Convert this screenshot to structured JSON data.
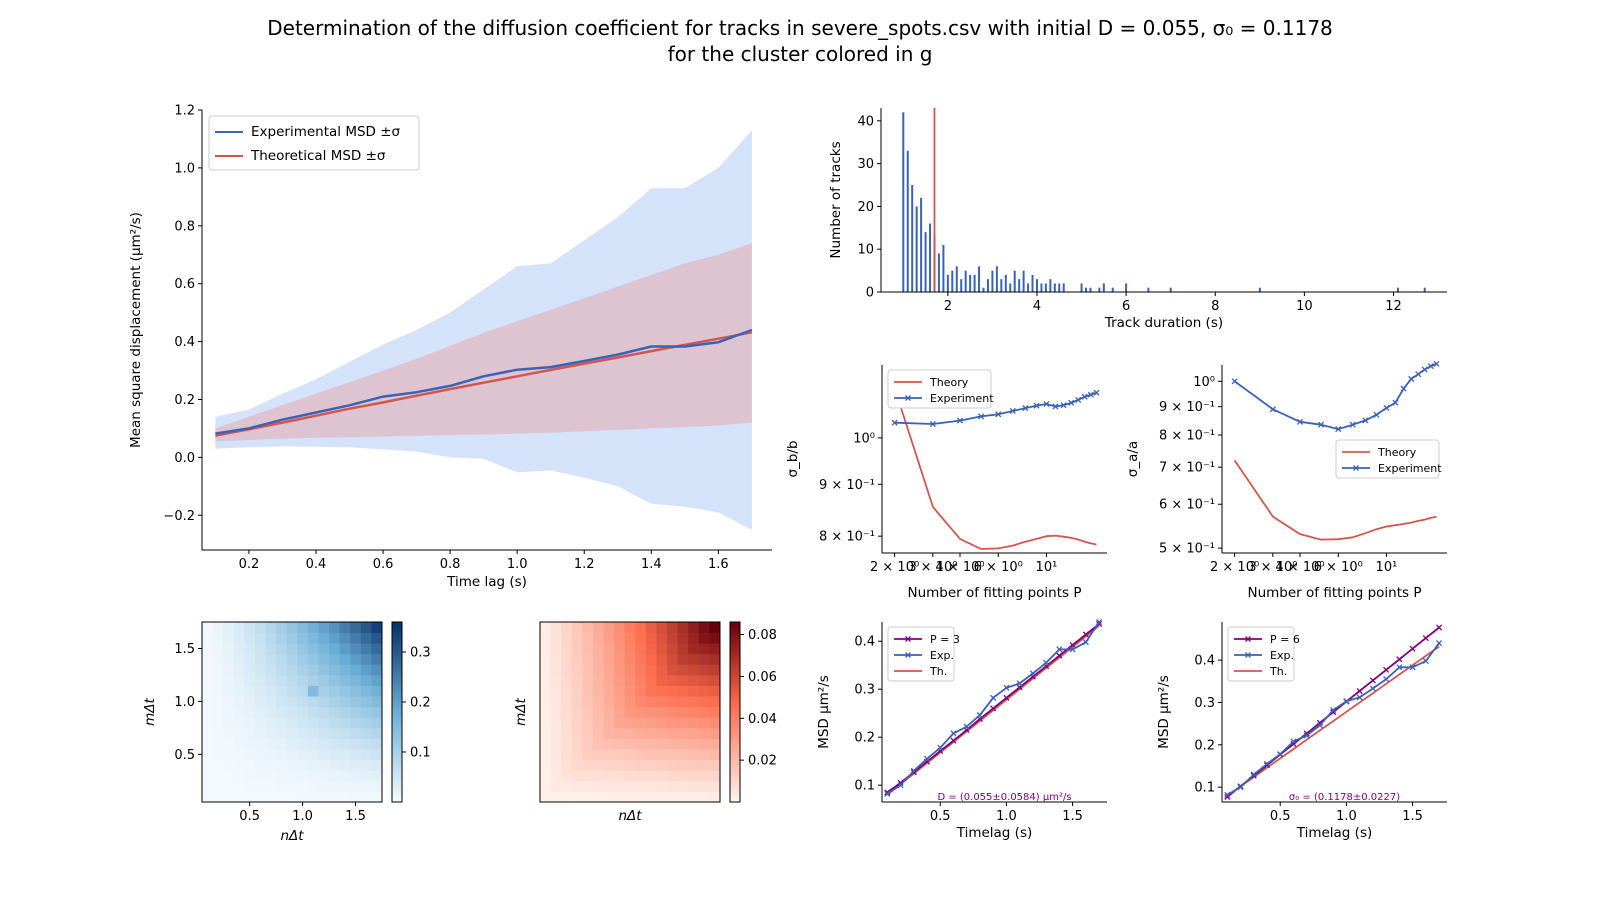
{
  "figure": {
    "title_line1": "Determination of the diffusion coefficient for tracks in severe_spots.csv with initial D = 0.055, σ₀ = 0.1178",
    "title_line2": "for the cluster colored in g"
  },
  "colors": {
    "blue": "#3a62b5",
    "red": "#d1574c",
    "purple": "#800080",
    "blue_band": "#a9c6f5",
    "red_band": "#e8a3a8"
  },
  "chart_data": [
    {
      "id": "msd_main",
      "type": "line",
      "xlabel": "Time lag (s)",
      "ylabel": "Mean square displacement (μm²/s)",
      "xlim": [
        0.06,
        1.76
      ],
      "ylim": [
        -0.32,
        1.2
      ],
      "xticks": [
        "0.2",
        "0.4",
        "0.6",
        "0.8",
        "1.0",
        "1.2",
        "1.4",
        "1.6"
      ],
      "yticks": [
        "−0.2",
        "0.0",
        "0.2",
        "0.4",
        "0.6",
        "0.8",
        "1.0",
        "1.2"
      ],
      "legend": "top-left",
      "x": [
        0.1,
        0.2,
        0.3,
        0.4,
        0.5,
        0.6,
        0.7,
        0.8,
        0.9,
        1.0,
        1.1,
        1.2,
        1.3,
        1.4,
        1.5,
        1.6,
        1.7
      ],
      "series": [
        {
          "name": "Experimental MSD ±σ",
          "values": [
            0.082,
            0.1,
            0.13,
            0.155,
            0.18,
            0.21,
            0.225,
            0.247,
            0.28,
            0.303,
            0.312,
            0.333,
            0.355,
            0.383,
            0.383,
            0.398,
            0.44
          ],
          "lower": [
            0.03,
            0.035,
            0.038,
            0.037,
            0.035,
            0.028,
            0.02,
            0.0,
            -0.005,
            -0.052,
            -0.045,
            -0.07,
            -0.1,
            -0.16,
            -0.17,
            -0.19,
            -0.25
          ],
          "upper": [
            0.14,
            0.165,
            0.22,
            0.27,
            0.33,
            0.39,
            0.44,
            0.5,
            0.58,
            0.66,
            0.67,
            0.75,
            0.83,
            0.93,
            0.93,
            1.0,
            1.13
          ]
        },
        {
          "name": "Theoretical MSD ±σ",
          "values": [
            0.075,
            0.097,
            0.12,
            0.144,
            0.168,
            0.19,
            0.213,
            0.236,
            0.258,
            0.28,
            0.302,
            0.324,
            0.345,
            0.367,
            0.389,
            0.41,
            0.432
          ],
          "lower": [
            0.055,
            0.06,
            0.065,
            0.068,
            0.07,
            0.072,
            0.075,
            0.077,
            0.079,
            0.082,
            0.085,
            0.09,
            0.095,
            0.1,
            0.105,
            0.11,
            0.12
          ],
          "upper": [
            0.1,
            0.14,
            0.18,
            0.22,
            0.26,
            0.3,
            0.34,
            0.385,
            0.43,
            0.47,
            0.51,
            0.55,
            0.59,
            0.63,
            0.67,
            0.7,
            0.74
          ]
        }
      ]
    },
    {
      "id": "duration_hist",
      "type": "bar",
      "xlabel": "Track duration (s)",
      "ylabel": "Number of tracks",
      "xlim": [
        0.5,
        13.2
      ],
      "ylim": [
        0,
        43
      ],
      "xticks": [
        "2",
        "4",
        "6",
        "8",
        "10",
        "12"
      ],
      "yticks": [
        "0",
        "10",
        "20",
        "30",
        "40"
      ],
      "marker_line_x": 1.7,
      "x": [
        1.0,
        1.1,
        1.2,
        1.3,
        1.4,
        1.5,
        1.6,
        1.7,
        1.8,
        1.9,
        2.0,
        2.1,
        2.2,
        2.3,
        2.4,
        2.5,
        2.6,
        2.7,
        2.8,
        2.9,
        3.0,
        3.1,
        3.2,
        3.3,
        3.4,
        3.5,
        3.6,
        3.7,
        3.8,
        3.9,
        4.0,
        4.1,
        4.2,
        4.3,
        4.4,
        4.5,
        4.6,
        5.0,
        5.1,
        5.2,
        5.4,
        5.5,
        5.7,
        6.0,
        6.5,
        7.0,
        9.0,
        12.1,
        12.7
      ],
      "values": [
        42,
        33,
        25,
        20,
        22,
        14,
        16,
        13,
        9,
        11,
        4,
        5,
        6,
        3,
        5,
        4,
        4,
        6,
        1,
        3,
        5,
        6,
        3,
        4,
        2,
        5,
        3,
        5,
        2,
        4,
        3,
        2,
        2,
        3,
        2,
        2,
        2,
        2,
        1,
        1,
        1,
        2,
        1,
        2,
        1,
        1,
        1,
        1,
        1
      ]
    },
    {
      "id": "sigma_b",
      "type": "line",
      "scale": "log-log",
      "xlabel": "Number of fitting points P",
      "ylabel": "σ_b/b",
      "xlim": [
        1.75,
        19.0
      ],
      "ylim": [
        0.77,
        1.18
      ],
      "xticks": [
        "2 × 10⁰",
        "3 × 10⁰",
        "4 × 10⁰",
        "6 × 10⁰",
        "10¹"
      ],
      "yticks": [
        "8 × 10⁻¹",
        "9 × 10⁻¹",
        "10⁰"
      ],
      "legend": "top-left",
      "x": [
        2,
        3,
        4,
        5,
        6,
        7,
        8,
        9,
        10,
        11,
        12,
        13,
        14,
        15,
        16,
        17
      ],
      "series": [
        {
          "name": "Theory",
          "values": [
            1.12,
            0.855,
            0.795,
            0.777,
            0.778,
            0.783,
            0.79,
            0.795,
            0.8,
            0.801,
            0.799,
            0.797,
            0.794,
            0.79,
            0.787,
            0.785
          ]
        },
        {
          "name": "Experiment",
          "values": [
            1.035,
            1.032,
            1.04,
            1.05,
            1.055,
            1.063,
            1.07,
            1.076,
            1.08,
            1.074,
            1.077,
            1.083,
            1.09,
            1.098,
            1.103,
            1.108
          ]
        }
      ]
    },
    {
      "id": "sigma_a",
      "type": "line",
      "scale": "log-log",
      "xlabel": "Number of fitting points P",
      "ylabel": "σ_a/a",
      "xlim": [
        1.75,
        19.0
      ],
      "ylim": [
        0.49,
        1.07
      ],
      "xticks": [
        "2 × 10⁰",
        "3 × 10⁰",
        "4 × 10⁰",
        "6 × 10⁰",
        "10¹"
      ],
      "yticks": [
        "5 × 10⁻¹",
        "6 × 10⁻¹",
        "7 × 10⁻¹",
        "8 × 10⁻¹",
        "9 × 10⁻¹",
        "10⁰"
      ],
      "legend": "center-right",
      "x": [
        2,
        3,
        4,
        5,
        6,
        7,
        8,
        9,
        10,
        11,
        12,
        13,
        14,
        15,
        16,
        17
      ],
      "series": [
        {
          "name": "Theory",
          "values": [
            0.72,
            0.57,
            0.53,
            0.518,
            0.519,
            0.523,
            0.532,
            0.541,
            0.547,
            0.55,
            0.553,
            0.556,
            0.56,
            0.563,
            0.567,
            0.57
          ]
        },
        {
          "name": "Experiment",
          "values": [
            1.0,
            0.89,
            0.845,
            0.835,
            0.82,
            0.835,
            0.85,
            0.87,
            0.895,
            0.915,
            0.97,
            1.01,
            1.03,
            1.05,
            1.065,
            1.075
          ]
        }
      ]
    },
    {
      "id": "fit_p3",
      "type": "line",
      "xlabel": "Timelag (s)",
      "ylabel": "MSD μm²/s",
      "xlim": [
        0.06,
        1.76
      ],
      "ylim": [
        0.065,
        0.44
      ],
      "xticks": [
        "0.5",
        "1.0",
        "1.5"
      ],
      "yticks": [
        "0.1",
        "0.2",
        "0.3",
        "0.4"
      ],
      "legend": "top-left",
      "annotation": "D = (0.055±0.0584) μm²/s",
      "x": [
        0.1,
        0.2,
        0.3,
        0.4,
        0.5,
        0.6,
        0.7,
        0.8,
        0.9,
        1.0,
        1.1,
        1.2,
        1.3,
        1.4,
        1.5,
        1.6,
        1.7
      ],
      "series": [
        {
          "name": "P = 3",
          "values": [
            0.085,
            0.105,
            0.127,
            0.149,
            0.171,
            0.193,
            0.215,
            0.238,
            0.26,
            0.282,
            0.304,
            0.326,
            0.348,
            0.37,
            0.392,
            0.414,
            0.436
          ]
        },
        {
          "name": "Exp.",
          "values": [
            0.082,
            0.1,
            0.13,
            0.155,
            0.178,
            0.208,
            0.222,
            0.246,
            0.282,
            0.303,
            0.312,
            0.333,
            0.355,
            0.383,
            0.383,
            0.398,
            0.44
          ]
        },
        {
          "name": "Th.",
          "values": [
            0.08,
            0.102,
            0.124,
            0.146,
            0.168,
            0.19,
            0.212,
            0.234,
            0.256,
            0.278,
            0.3,
            0.322,
            0.344,
            0.366,
            0.388,
            0.41,
            0.432
          ]
        }
      ]
    },
    {
      "id": "fit_p6",
      "type": "line",
      "xlabel": "Timelag (s)",
      "ylabel": "MSD μm²/s",
      "xlim": [
        0.06,
        1.76
      ],
      "ylim": [
        0.065,
        0.49
      ],
      "xticks": [
        "0.5",
        "1.0",
        "1.5"
      ],
      "yticks": [
        "0.1",
        "0.2",
        "0.3",
        "0.4"
      ],
      "legend": "top-left",
      "annotation": "σ₀ = (0.1178±0.0227)",
      "x": [
        0.1,
        0.2,
        0.3,
        0.4,
        0.5,
        0.6,
        0.7,
        0.8,
        0.9,
        1.0,
        1.1,
        1.2,
        1.3,
        1.4,
        1.5,
        1.6,
        1.7
      ],
      "series": [
        {
          "name": "P = 6",
          "values": [
            0.077,
            0.102,
            0.127,
            0.152,
            0.177,
            0.202,
            0.227,
            0.252,
            0.277,
            0.302,
            0.327,
            0.352,
            0.377,
            0.402,
            0.427,
            0.452,
            0.477
          ]
        },
        {
          "name": "Exp.",
          "values": [
            0.082,
            0.1,
            0.13,
            0.155,
            0.178,
            0.208,
            0.222,
            0.246,
            0.282,
            0.303,
            0.312,
            0.333,
            0.355,
            0.383,
            0.383,
            0.398,
            0.44
          ]
        },
        {
          "name": "Th.",
          "values": [
            0.08,
            0.102,
            0.124,
            0.146,
            0.168,
            0.19,
            0.212,
            0.234,
            0.256,
            0.278,
            0.3,
            0.322,
            0.344,
            0.366,
            0.388,
            0.41,
            0.432
          ]
        }
      ]
    },
    {
      "id": "cov_exp",
      "type": "heatmap",
      "colormap": "Blues",
      "xlabel": "nΔt",
      "ylabel": "mΔt",
      "xlim": [
        0.05,
        1.75
      ],
      "ylim": [
        0.05,
        1.75
      ],
      "xticks": [
        "0.5",
        "1.0",
        "1.5"
      ],
      "yticks": [
        "0.5",
        "1.0",
        "1.5"
      ],
      "colorbar_ticks": [
        "0.1",
        "0.2",
        "0.3"
      ],
      "colorbar_range": [
        0.0,
        0.36
      ],
      "grid_size": 17,
      "hotspots": [
        {
          "i": 10,
          "j": 10,
          "value": 0.15
        }
      ]
    },
    {
      "id": "cov_theory",
      "type": "heatmap",
      "colormap": "Reds",
      "xlabel": "nΔt",
      "ylabel": "mΔt",
      "xlim": [
        0.05,
        1.75
      ],
      "ylim": [
        0.05,
        1.75
      ],
      "xticks": [],
      "yticks": [],
      "colorbar_ticks": [
        "0.02",
        "0.04",
        "0.06",
        "0.08"
      ],
      "colorbar_range": [
        0.0,
        0.086
      ],
      "grid_size": 17
    }
  ]
}
